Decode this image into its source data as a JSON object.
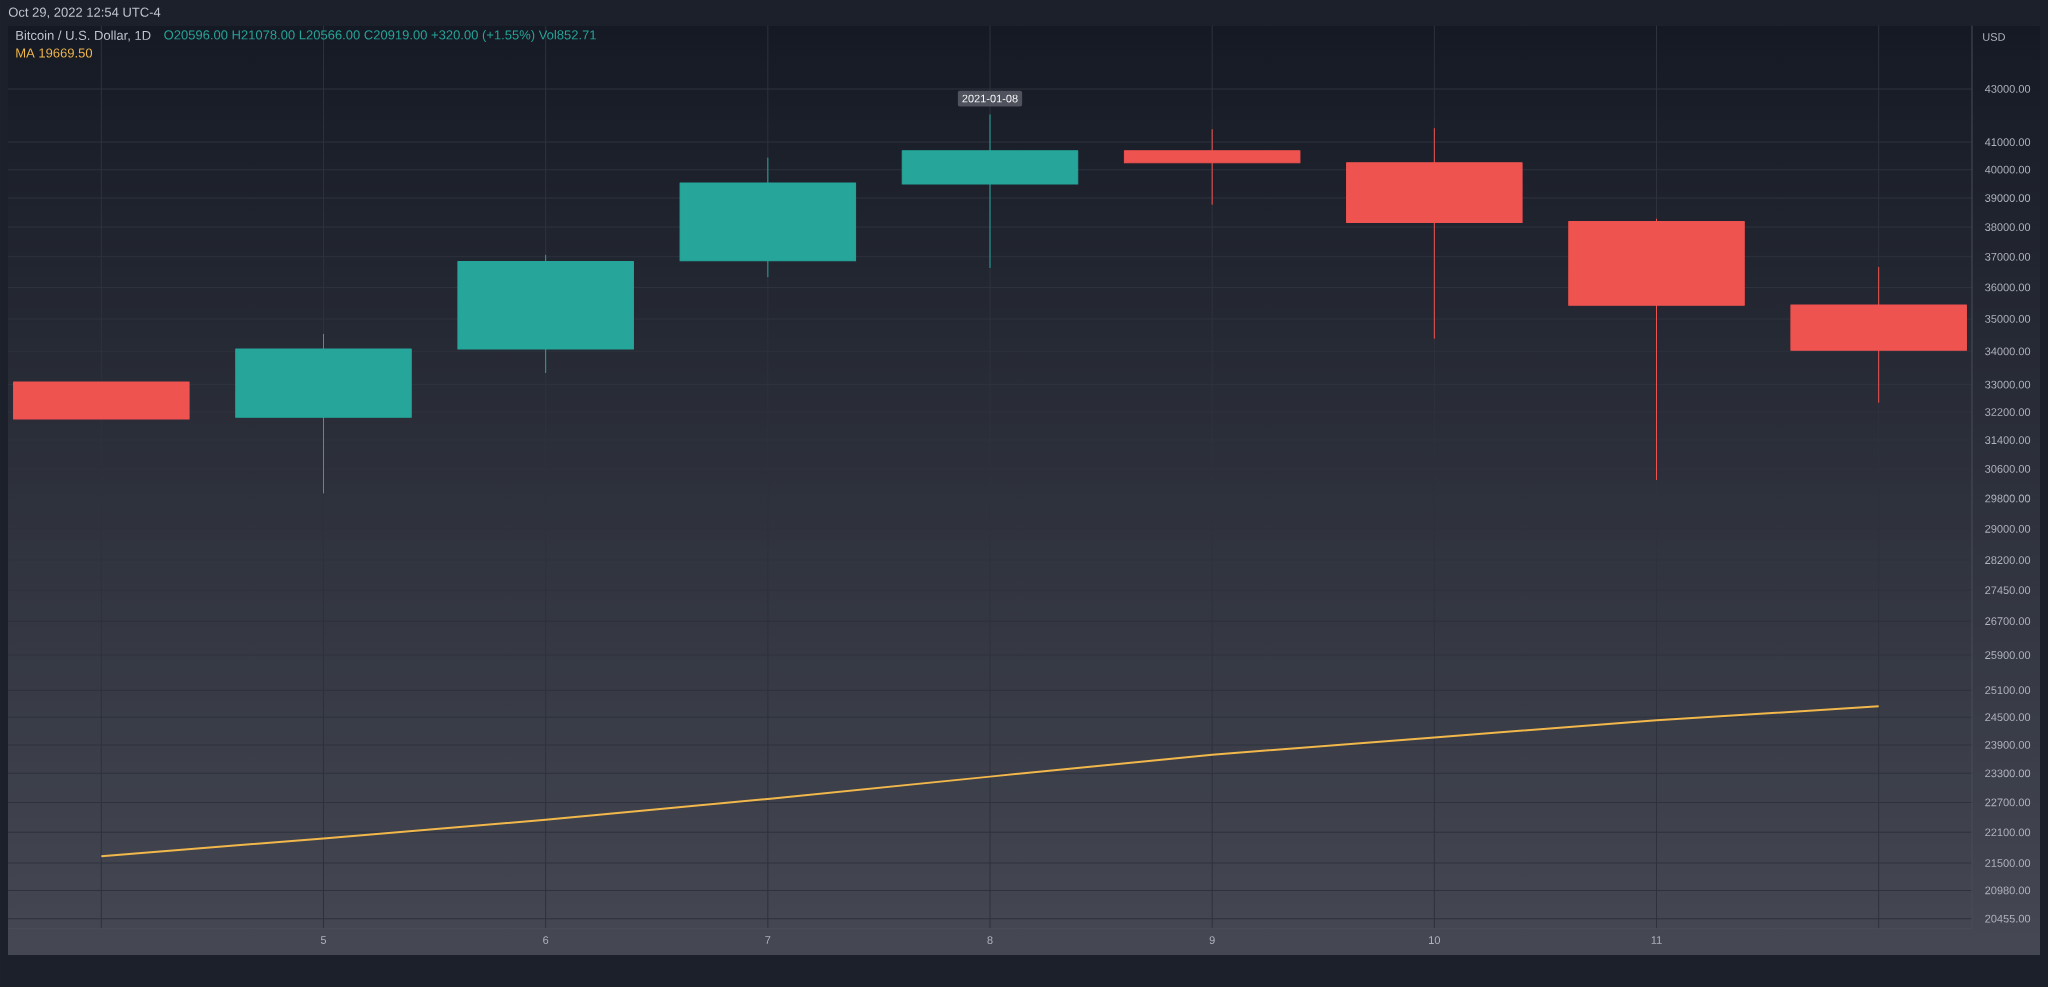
{
  "chart_data": {
    "type": "candlestick",
    "title": "Bitcoin / U.S. Dollar, 1D",
    "subtitle": "O20596.00 H21078.00 L20566.00 C20919.00 +320.00 (+1.55%) Vol852.71",
    "ylabel": "USD",
    "annotations": [
      "Oct 29, 2022 12:54 UTC-4",
      "MA 19669.50",
      {
        "text": "2021-01-08",
        "x": "8",
        "y": 42020
      }
    ],
    "categories": [
      null,
      "5",
      "6",
      "7",
      "8",
      "9",
      "10",
      "11",
      null
    ],
    "ohlc": [
      [
        33080,
        33080,
        32000,
        32000
      ],
      [
        32050,
        34520,
        29950,
        34070
      ],
      [
        34070,
        37050,
        33360,
        36850
      ],
      [
        36870,
        40420,
        36350,
        39530
      ],
      [
        39500,
        42020,
        36650,
        40680
      ],
      [
        40680,
        41470,
        38790,
        40250
      ],
      [
        40250,
        41500,
        34400,
        38160
      ],
      [
        38190,
        38280,
        30310,
        35430
      ],
      [
        35440,
        36660,
        32480,
        34030
      ]
    ],
    "colors": [
      "#ef5350",
      "#26a69a",
      "#26a69a",
      "#26a69a",
      "#26a69a",
      "#ef5350",
      "#ef5350",
      "#ef5350",
      "#ef5350"
    ],
    "series": [
      {
        "type": "line",
        "color": "#f2b84b",
        "values": [
          21630,
          21980,
          22350,
          22770,
          23230,
          23690,
          24060,
          24430,
          24740
        ]
      }
    ],
    "log": "y",
    "ylim": [
      20270,
      45500
    ],
    "yticks": [
      {
        "value": 20455,
        "label": "20455.00"
      },
      {
        "value": 20980,
        "label": "20980.00"
      },
      {
        "value": 21500,
        "label": "21500.00"
      },
      {
        "value": 22100,
        "label": "22100.00"
      },
      {
        "value": 22700,
        "label": "22700.00"
      },
      {
        "value": 23300,
        "label": "23300.00"
      },
      {
        "value": 23900,
        "label": "23900.00"
      },
      {
        "value": 24500,
        "label": "24500.00"
      },
      {
        "value": 25100,
        "label": "25100.00"
      },
      {
        "value": 25900,
        "label": "25900.00"
      },
      {
        "value": 26700,
        "label": "26700.00"
      },
      {
        "value": 27450,
        "label": "27450.00"
      },
      {
        "value": 28200,
        "label": "28200.00"
      },
      {
        "value": 29000,
        "label": "29000.00"
      },
      {
        "value": 29800,
        "label": "29800.00"
      },
      {
        "value": 30600,
        "label": "30600.00"
      },
      {
        "value": 31400,
        "label": "31400.00"
      },
      {
        "value": 32200,
        "label": "32200.00"
      },
      {
        "value": 33000,
        "label": "33000.00"
      },
      {
        "value": 34000,
        "label": "34000.00"
      },
      {
        "value": 35000,
        "label": "35000.00"
      },
      {
        "value": 36000,
        "label": "36000.00"
      },
      {
        "value": 37000,
        "label": "37000.00"
      },
      {
        "value": 38000,
        "label": "38000.00"
      },
      {
        "value": 39000,
        "label": "39000.00"
      },
      {
        "value": 40000,
        "label": "40000.00"
      },
      {
        "value": 41000,
        "label": "41000.00"
      },
      {
        "value": 43000,
        "label": "43000.00"
      }
    ],
    "grid": true
  }
}
